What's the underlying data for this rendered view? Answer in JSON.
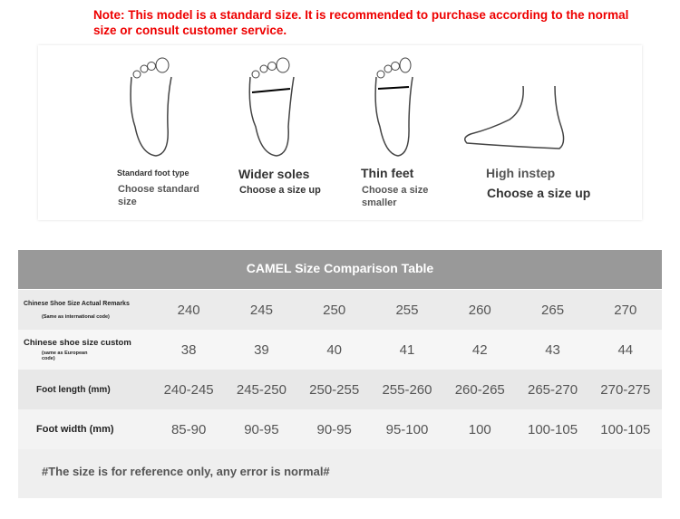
{
  "note": "Note: This model is a standard size. It is recommended to purchase according to the normal size or consult customer service.",
  "foot_types": [
    {
      "title": "Standard foot type",
      "advice": "Choose standard size",
      "icon": "standard-foot-icon"
    },
    {
      "title": "Wider soles",
      "advice": "Choose a size up",
      "icon": "wide-foot-icon"
    },
    {
      "title": "Thin feet",
      "advice": "Choose a size smaller",
      "icon": "thin-foot-icon"
    },
    {
      "title": "High instep",
      "advice": "Choose a size up",
      "icon": "high-instep-foot-icon"
    }
  ],
  "table": {
    "title": "CAMEL Size Comparison Table",
    "rows": [
      {
        "label": "Chinese Shoe Size Actual Remarks",
        "sub": "(Same as international code)",
        "values": [
          "240",
          "245",
          "250",
          "255",
          "260",
          "265",
          "270"
        ]
      },
      {
        "label": "Chinese shoe size custom",
        "sub": "(same as European code)",
        "values": [
          "38",
          "39",
          "40",
          "41",
          "42",
          "43",
          "44"
        ]
      },
      {
        "label": "Foot length (mm)",
        "values": [
          "240-245",
          "245-250",
          "250-255",
          "255-260",
          "260-265",
          "265-270",
          "270-275"
        ]
      },
      {
        "label": "Foot width (mm)",
        "values": [
          "85-90",
          "90-95",
          "90-95",
          "95-100",
          "100",
          "100-105",
          "100-105"
        ]
      }
    ],
    "footnote": "#The size is for reference only, any error is normal#"
  }
}
